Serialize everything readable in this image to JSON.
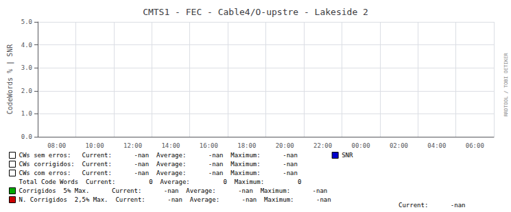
{
  "chart_data": {
    "type": "line",
    "title": "CMTS1 - FEC - Cable4/O-upstre - Lakeside 2",
    "ylabel": "CodeWords % | SNR",
    "categories": [
      "08:00",
      "10:00",
      "12:00",
      "14:00",
      "16:00",
      "18:00",
      "20:00",
      "22:00",
      "00:00",
      "02:00",
      "04:00",
      "06:00"
    ],
    "ylim": [
      0.0,
      5.0
    ],
    "yticks": [
      {
        "value": 0.0,
        "label": "0.0"
      },
      {
        "value": 1.0,
        "label": "1.0"
      },
      {
        "value": 2.0,
        "label": "2.0"
      },
      {
        "value": 3.0,
        "label": "3.0"
      },
      {
        "value": 4.0,
        "label": "4.0"
      },
      {
        "value": 5.0,
        "label": "5.0"
      }
    ],
    "grid": true,
    "series": [
      {
        "name": "CWs sem erros:   Current:      -nan  Average:      -nan  Maximum:      -nan",
        "color": "#ffffff",
        "values": [
          null,
          null,
          null,
          null,
          null,
          null,
          null,
          null,
          null,
          null,
          null,
          null
        ]
      },
      {
        "name": "CWs corrigidos:  Current:      -nan  Average:      -nan  Maximum:      -nan",
        "color": "#ffffff",
        "values": [
          null,
          null,
          null,
          null,
          null,
          null,
          null,
          null,
          null,
          null,
          null,
          null
        ]
      },
      {
        "name": "CWs com erros:   Current:      -nan  Average:      -nan  Maximum:      -nan",
        "color": "#ffffff",
        "values": [
          null,
          null,
          null,
          null,
          null,
          null,
          null,
          null,
          null,
          null,
          null,
          null
        ]
      },
      {
        "name": "Total Code Words  Current:         0  Average:         0  Maximum:         0",
        "values": [
          null,
          null,
          null,
          null,
          null,
          null,
          null,
          null,
          null,
          null,
          null,
          null
        ]
      },
      {
        "name": "Corrigidos  5% Max.      Current:      -nan  Average:      -nan  Maximum:      -nan",
        "color": "#00aa00",
        "values": [
          null,
          null,
          null,
          null,
          null,
          null,
          null,
          null,
          null,
          null,
          null,
          null
        ]
      },
      {
        "name": "N. Corrigidos  2,5% Max.  Current:      -nan  Average:      -nan  Maximum:      -nan",
        "color": "#cc0000",
        "values": [
          null,
          null,
          null,
          null,
          null,
          null,
          null,
          null,
          null,
          null,
          null,
          null
        ]
      },
      {
        "name": "SNR",
        "color": "#0000cc",
        "values": [
          null,
          null,
          null,
          null,
          null,
          null,
          null,
          null,
          null,
          null,
          null,
          null
        ]
      }
    ],
    "annotations": [
      "Current:      -nan",
      "RRDTOOL / TOBI OETIKER"
    ]
  }
}
